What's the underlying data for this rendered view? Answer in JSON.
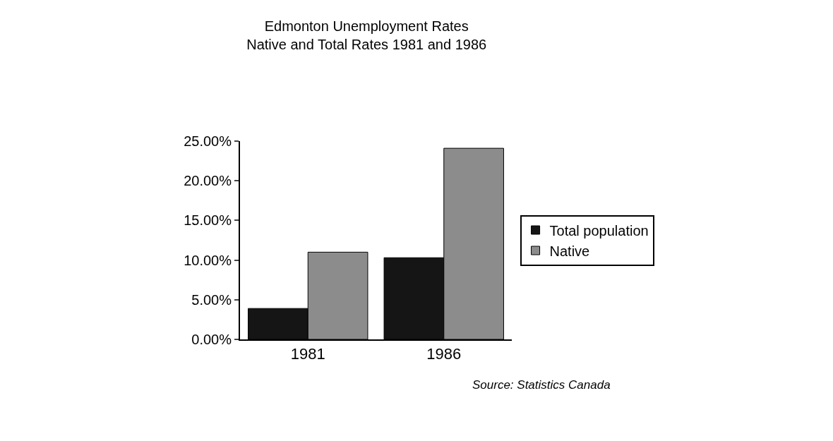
{
  "chart_data": {
    "type": "bar",
    "title": "Edmonton Unemployment Rates",
    "subtitle": "Native and Total Rates 1981 and 1986",
    "categories": [
      "1981",
      "1986"
    ],
    "series": [
      {
        "name": "Total population",
        "color": "#151515",
        "values": [
          3.9,
          10.3
        ]
      },
      {
        "name": "Native",
        "color": "#8c8c8c",
        "values": [
          11.0,
          24.1
        ]
      }
    ],
    "ylim": [
      0,
      25
    ],
    "yticks": [
      {
        "value": 0,
        "label": "0.00%"
      },
      {
        "value": 5,
        "label": "5.00%"
      },
      {
        "value": 10,
        "label": "10.00%"
      },
      {
        "value": 15,
        "label": "15.00%"
      },
      {
        "value": 20,
        "label": "20.00%"
      },
      {
        "value": 25,
        "label": "25.00%"
      }
    ],
    "legend": "right",
    "annotations": [
      "Source: Statistics Canada"
    ]
  }
}
